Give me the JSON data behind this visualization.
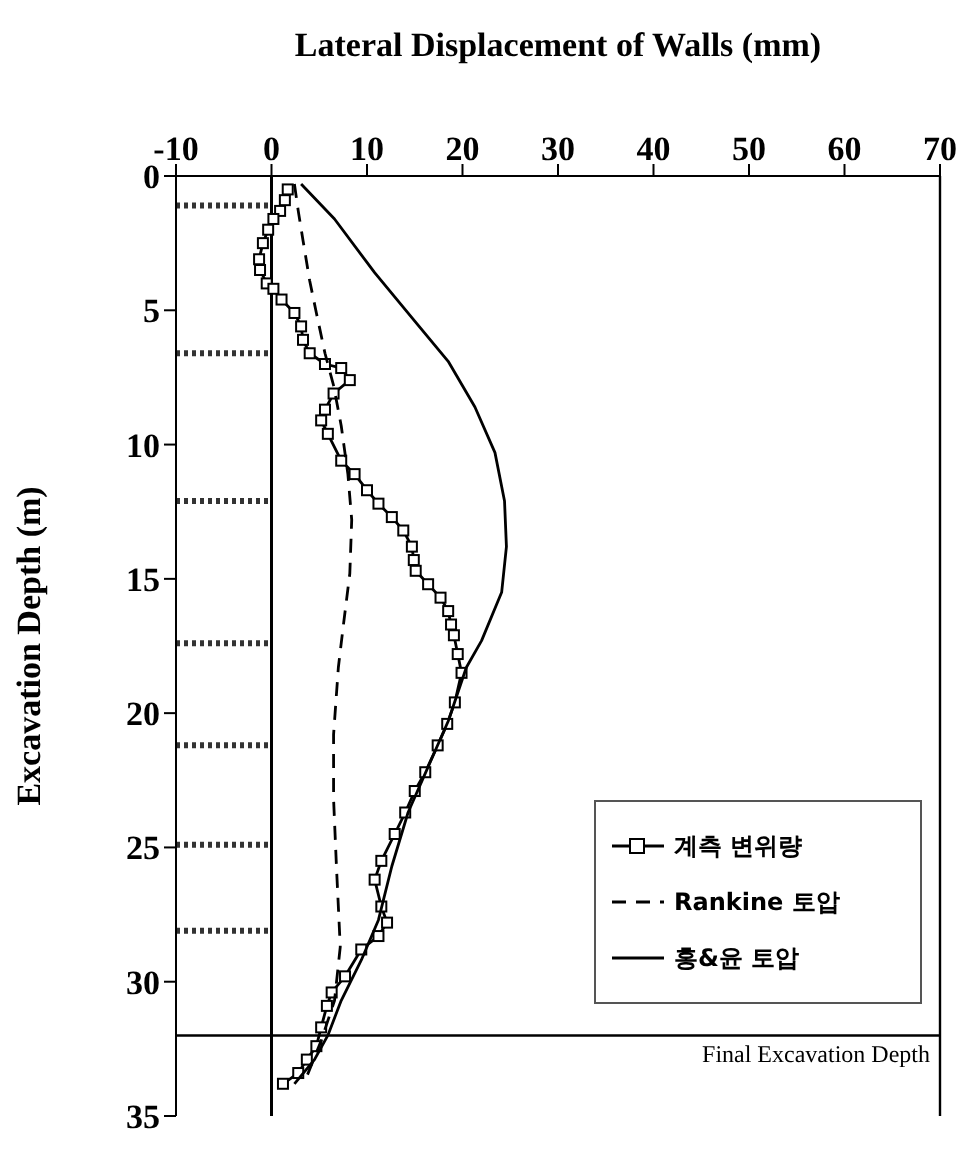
{
  "chart_data": {
    "type": "line",
    "xlabel": "Lateral Displacement of Walls (mm)",
    "ylabel": "Excavation Depth (m)",
    "xlim": [
      -10,
      70
    ],
    "xticks": [
      -10,
      0,
      10,
      20,
      30,
      40,
      50,
      60,
      70
    ],
    "ylim": [
      35,
      0
    ],
    "yticks": [
      0,
      5,
      10,
      15,
      20,
      25,
      30,
      35
    ],
    "grid": false,
    "legend": "bottom right",
    "series": [
      {
        "name": "계측 변위량",
        "color": "#000000",
        "marker": "square",
        "line_style": "solid",
        "x": [
          1.7,
          1.4,
          0.9,
          0.2,
          -0.35,
          -0.9,
          -1.3,
          -1.2,
          -0.5,
          0.2,
          1.05,
          2.4,
          3.1,
          3.3,
          4.0,
          5.6,
          7.3,
          8.2,
          6.5,
          5.6,
          5.2,
          5.9,
          7.3,
          8.7,
          10.0,
          11.2,
          12.6,
          13.8,
          14.7,
          14.9,
          15.1,
          16.4,
          17.7,
          18.5,
          18.8,
          19.1,
          19.5,
          19.9,
          19.2,
          18.4,
          17.4,
          16.1,
          15.0,
          14.0,
          12.9,
          11.5,
          10.8,
          11.5,
          12.1,
          11.2,
          9.4,
          7.7,
          6.3,
          5.8,
          5.2,
          4.7,
          3.7,
          2.8,
          1.2
        ],
        "values": [
          0.5,
          0.9,
          1.3,
          1.6,
          2.0,
          2.5,
          3.1,
          3.5,
          4.0,
          4.2,
          4.6,
          5.1,
          5.6,
          6.1,
          6.6,
          7.0,
          7.15,
          7.6,
          8.1,
          8.7,
          9.1,
          9.6,
          10.6,
          11.1,
          11.7,
          12.2,
          12.7,
          13.2,
          13.8,
          14.3,
          14.7,
          15.2,
          15.7,
          16.2,
          16.7,
          17.1,
          17.8,
          18.5,
          19.6,
          20.4,
          21.2,
          22.2,
          22.9,
          23.7,
          24.5,
          25.5,
          26.2,
          27.2,
          27.8,
          28.3,
          28.8,
          29.8,
          30.4,
          30.9,
          31.7,
          32.4,
          32.9,
          33.4,
          33.8
        ]
      },
      {
        "name": "Rankine 토압",
        "color": "#000000",
        "marker": "none",
        "line_style": "dashed",
        "x": [
          2.4,
          2.8,
          3.3,
          4.0,
          4.7,
          5.6,
          6.5,
          7.3,
          8.0,
          8.4,
          8.2,
          7.5,
          7.0,
          6.5,
          6.5,
          6.8,
          7.2,
          6.6,
          5.2,
          3.5
        ],
        "values": [
          0.3,
          1.3,
          2.4,
          3.9,
          5.1,
          6.6,
          7.8,
          9.3,
          11.1,
          12.8,
          14.8,
          16.8,
          18.3,
          20.8,
          23.2,
          25.7,
          28.7,
          30.7,
          32.2,
          33.7
        ]
      },
      {
        "name": "홍&윤 토압",
        "color": "#000000",
        "marker": "none",
        "line_style": "solid",
        "x": [
          3.1,
          6.6,
          10.8,
          15.0,
          18.5,
          21.3,
          23.4,
          24.4,
          24.6,
          24.1,
          22.0,
          20.4,
          18.5,
          16.4,
          14.3,
          12.6,
          11.2,
          9.4,
          7.3,
          5.9,
          4.5,
          2.4
        ],
        "values": [
          0.3,
          1.6,
          3.6,
          5.4,
          6.9,
          8.6,
          10.3,
          12.1,
          13.8,
          15.5,
          17.3,
          18.3,
          20.3,
          22.0,
          23.7,
          25.7,
          27.7,
          29.2,
          30.7,
          32.0,
          32.9,
          33.8
        ]
      }
    ],
    "ref_lines": [
      {
        "axis": "x",
        "value": 0,
        "color": "#000000",
        "line_style": "solid"
      },
      {
        "axis": "y",
        "value": 32,
        "label": "Final Excavation Depth",
        "color": "#000000",
        "line_style": "solid"
      },
      {
        "axis": "y",
        "value": 1.1,
        "color": "#333333",
        "line_style": "dotted"
      },
      {
        "axis": "y",
        "value": 6.6,
        "color": "#333333",
        "line_style": "dotted"
      },
      {
        "axis": "y",
        "value": 12.1,
        "color": "#333333",
        "line_style": "dotted"
      },
      {
        "axis": "y",
        "value": 17.4,
        "color": "#333333",
        "line_style": "dotted"
      },
      {
        "axis": "y",
        "value": 21.2,
        "color": "#333333",
        "line_style": "dotted"
      },
      {
        "axis": "y",
        "value": 24.9,
        "color": "#333333",
        "line_style": "dotted"
      },
      {
        "axis": "y",
        "value": 28.1,
        "color": "#333333",
        "line_style": "dotted"
      }
    ]
  }
}
